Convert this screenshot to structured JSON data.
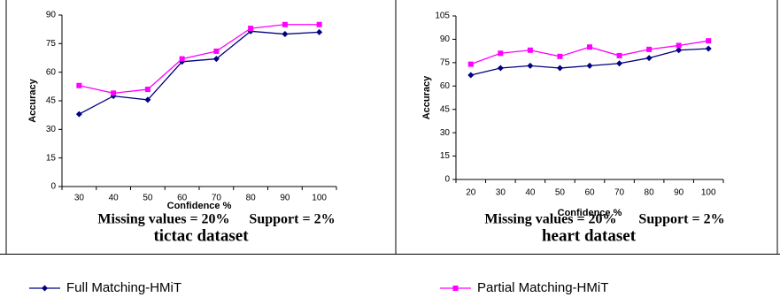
{
  "chart_data": [
    {
      "type": "line",
      "title": "tictac dataset",
      "notes": [
        "Missing values = 20%",
        "Support = 2%"
      ],
      "xlabel": "Confidence %",
      "ylabel": "Accuracy",
      "categories": [
        "30",
        "40",
        "50",
        "60",
        "70",
        "80",
        "90",
        "100"
      ],
      "ylim": [
        0,
        90
      ],
      "yticks": [
        0,
        15,
        30,
        45,
        60,
        75,
        90
      ],
      "series": [
        {
          "color": "#000080",
          "marker": "diamond",
          "values": [
            38,
            47.5,
            45.5,
            65.5,
            67,
            81.5,
            80,
            81
          ]
        },
        {
          "color": "#ff00ff",
          "marker": "square",
          "values": [
            53,
            49,
            51,
            67,
            71,
            83,
            85,
            85
          ]
        }
      ]
    },
    {
      "type": "line",
      "title": "heart dataset",
      "notes": [
        "Missing values = 20%",
        "Support = 2%"
      ],
      "xlabel": "Confidence %",
      "ylabel": "Accuracy",
      "categories": [
        "20",
        "30",
        "40",
        "50",
        "60",
        "70",
        "80",
        "90",
        "100"
      ],
      "ylim": [
        0,
        105
      ],
      "yticks": [
        0,
        15,
        30,
        45,
        60,
        75,
        90,
        105
      ],
      "series": [
        {
          "color": "#000080",
          "marker": "diamond",
          "values": [
            67,
            71.5,
            73,
            71.5,
            73,
            74.5,
            78,
            83,
            84
          ]
        },
        {
          "color": "#ff00ff",
          "marker": "square",
          "values": [
            74,
            81,
            83,
            79,
            85,
            79.5,
            83.5,
            86,
            89
          ]
        }
      ]
    }
  ],
  "legend": [
    {
      "name": "Full Matching-HMiT",
      "color": "#000080",
      "marker": "diamond"
    },
    {
      "name": "Partial Matching-HMiT",
      "color": "#ff00ff",
      "marker": "square"
    }
  ]
}
